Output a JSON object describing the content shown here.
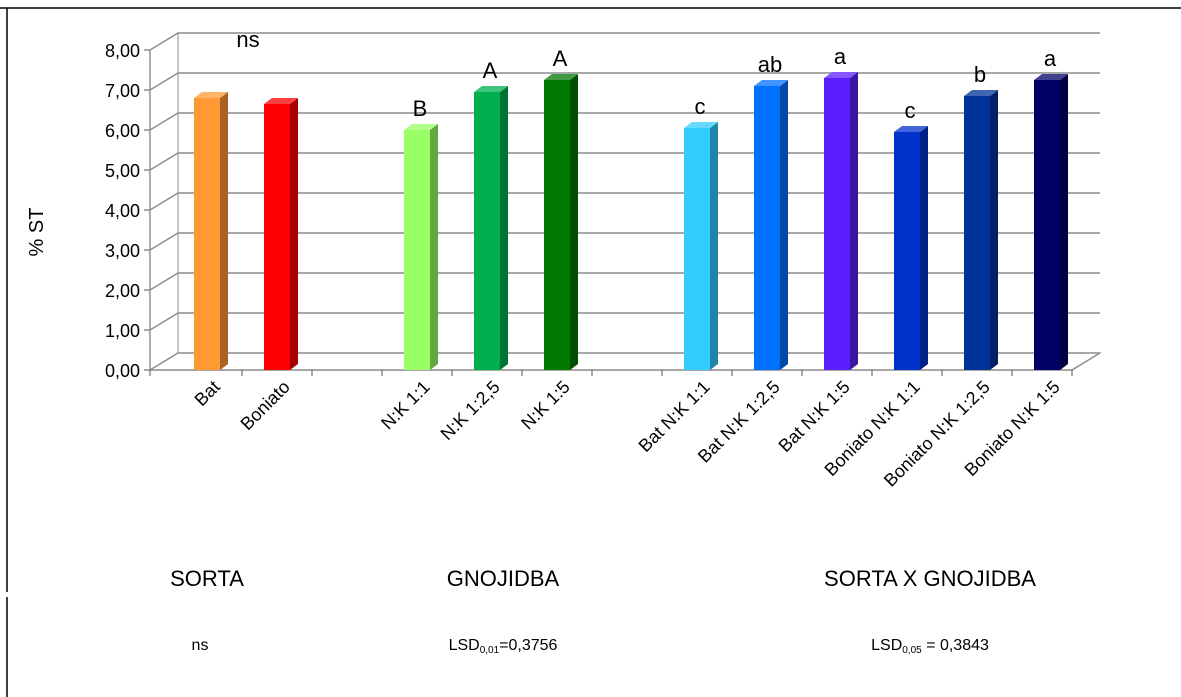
{
  "chart_data": {
    "type": "bar",
    "ylabel": "% ST",
    "ylim": [
      0,
      8
    ],
    "y_ticks": [
      "0,00",
      "1,00",
      "2,00",
      "3,00",
      "4,00",
      "5,00",
      "6,00",
      "7,00",
      "8,00"
    ],
    "grid": true,
    "legend": "none",
    "categories": [
      "Bat",
      "Boniato",
      "N:K 1:1",
      "N:K 1:2,5",
      "N:K 1:5",
      "Bat N:K 1:1",
      "Bat N:K 1:2,5",
      "Bat N:K 1:5",
      "Boniato N:K 1:1",
      "Boniato N:K 1:2,5",
      "Boniato N:K 1:5"
    ],
    "values": [
      6.8,
      6.65,
      6.0,
      6.95,
      7.25,
      6.05,
      7.1,
      7.3,
      5.95,
      6.85,
      7.25
    ],
    "significance_labels": [
      "ns",
      "",
      "B",
      "A",
      "A",
      "c",
      "ab",
      "a",
      "c",
      "b",
      "a"
    ],
    "colors": [
      "#FF9933",
      "#FF0000",
      "#99FF66",
      "#00B050",
      "#007A00",
      "#33CCFF",
      "#0070FF",
      "#5B1FFF",
      "#0033CC",
      "#003399",
      "#000066"
    ]
  },
  "groups": [
    {
      "title": "SORTA",
      "lsd_text": "ns",
      "lsd_prefix": "",
      "lsd_sub": "",
      "lsd_value": ""
    },
    {
      "title": "GNOJIDBA",
      "lsd_text": "",
      "lsd_prefix": "LSD",
      "lsd_sub": "0,01",
      "lsd_value": "=0,3756"
    },
    {
      "title": "SORTA X GNOJIDBA",
      "lsd_text": "",
      "lsd_prefix": "LSD",
      "lsd_sub": "0,05",
      "lsd_value": " = 0,3843"
    }
  ]
}
